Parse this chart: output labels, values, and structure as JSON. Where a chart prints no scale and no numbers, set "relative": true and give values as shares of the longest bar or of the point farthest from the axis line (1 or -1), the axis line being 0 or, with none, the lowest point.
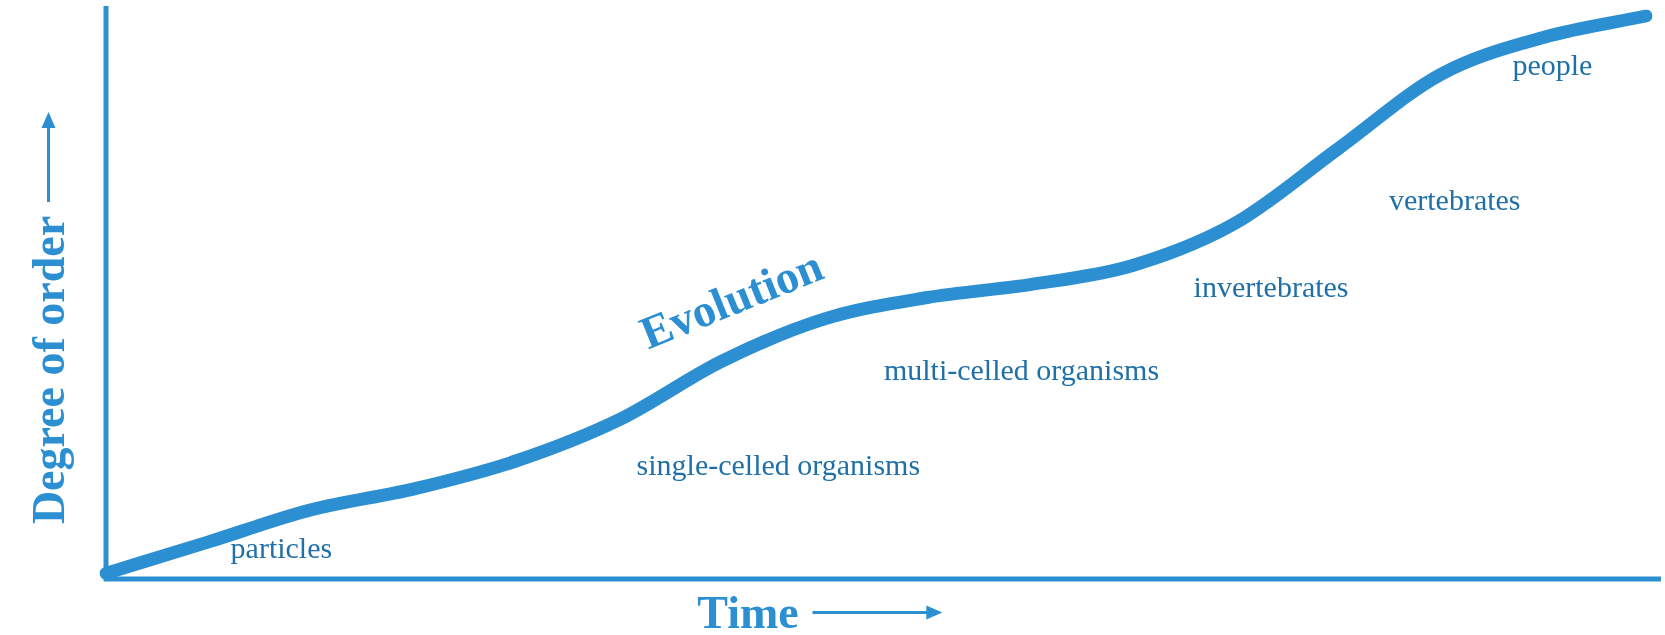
{
  "chart_data": {
    "type": "line",
    "relative": true,
    "xlabel": "Time",
    "ylabel": "Degree of order",
    "categories": [
      null,
      null,
      null,
      null,
      null,
      null,
      null,
      null,
      null,
      null,
      null,
      null,
      null,
      null,
      null,
      null
    ],
    "series": [
      {
        "color": "#2b8fd2",
        "values": [
          0.01,
          0.066,
          0.123,
          0.16,
          0.21,
          0.283,
          0.387,
          0.462,
          0.5,
          0.523,
          0.557,
          0.632,
          0.764,
          0.896,
          0.962,
          1.0
        ]
      }
    ],
    "annotations": [
      "Evolution",
      "particles",
      "single-celled organisms",
      "multi-celled organisms",
      "invertebrates",
      "vertebrates",
      "people"
    ],
    "legend": false,
    "marker": "none",
    "line_style": "solid"
  }
}
